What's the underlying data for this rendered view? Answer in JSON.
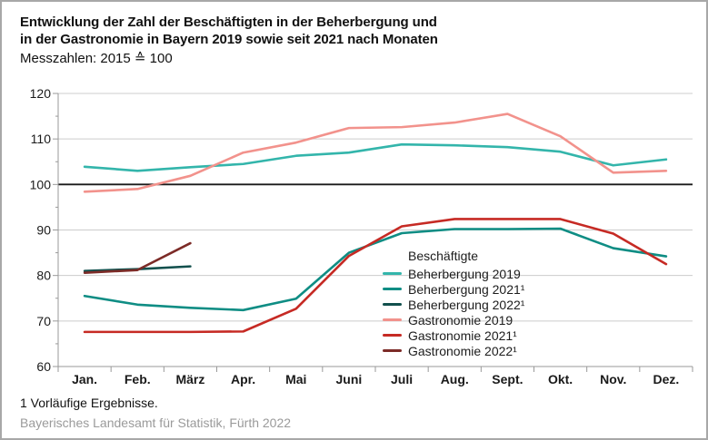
{
  "header": {
    "title_line1": "Entwicklung der Zahl der Beschäftigten in der Beherbergung und",
    "title_line2": "in der Gastronomie in Bayern 2019 sowie seit 2021 nach Monaten",
    "subtitle": "Messzahlen: 2015 ≙ 100"
  },
  "legend": {
    "title": "Beschäftigte"
  },
  "footer": {
    "footnote": "1  Vorläufige Ergebnisse.",
    "source": "Bayerisches Landesamt für Statistik, Fürth 2022"
  },
  "colors": {
    "grid": "#cccccc",
    "axis": "#999999",
    "reference_line": "#1a1a1a",
    "text": "#1a1a1a",
    "source_text": "#9a9a9a"
  },
  "chart_data": {
    "type": "line",
    "title": "Entwicklung der Zahl der Beschäftigten in der Beherbergung und in der Gastronomie in Bayern 2019 sowie seit 2021 nach Monaten",
    "subtitle": "Messzahlen: 2015 ≙ 100",
    "categories": [
      "Jan.",
      "Feb.",
      "März",
      "Apr.",
      "Mai",
      "Juni",
      "Juli",
      "Aug.",
      "Sept.",
      "Okt.",
      "Nov.",
      "Dez."
    ],
    "ylim": [
      60,
      120
    ],
    "yticks": [
      60,
      70,
      80,
      90,
      100,
      110,
      120
    ],
    "ytick_minor_step": 5,
    "reference_line": 100,
    "grid": true,
    "legend_position": "inside-bottom-right",
    "legend_title": "Beschäftigte",
    "series": [
      {
        "name": "Beherbergung 2019",
        "color": "#33b5ab",
        "values": [
          103.9,
          103.0,
          103.8,
          104.5,
          106.3,
          107.0,
          108.8,
          108.6,
          108.2,
          107.2,
          104.2,
          105.5
        ]
      },
      {
        "name": "Beherbergung 2021¹",
        "color": "#0f8d84",
        "values": [
          75.5,
          73.6,
          72.9,
          72.4,
          74.9,
          85.0,
          89.3,
          90.2,
          90.2,
          90.3,
          86.0,
          84.2
        ]
      },
      {
        "name": "Beherbergung 2022¹",
        "color": "#12504d",
        "values": [
          81.0,
          81.4,
          82.0
        ]
      },
      {
        "name": "Gastronomie 2019",
        "color": "#f2928c",
        "values": [
          98.4,
          99.0,
          101.9,
          107.0,
          109.2,
          112.4,
          112.6,
          113.6,
          115.5,
          110.6,
          102.6,
          103.0
        ]
      },
      {
        "name": "Gastronomie 2021¹",
        "color": "#c62a24",
        "values": [
          67.6,
          67.6,
          67.6,
          67.7,
          72.7,
          84.3,
          90.8,
          92.4,
          92.4,
          92.4,
          89.2,
          82.5
        ]
      },
      {
        "name": "Gastronomie 2022¹",
        "color": "#7c2b27",
        "values": [
          80.6,
          81.2,
          87.1
        ]
      }
    ]
  }
}
